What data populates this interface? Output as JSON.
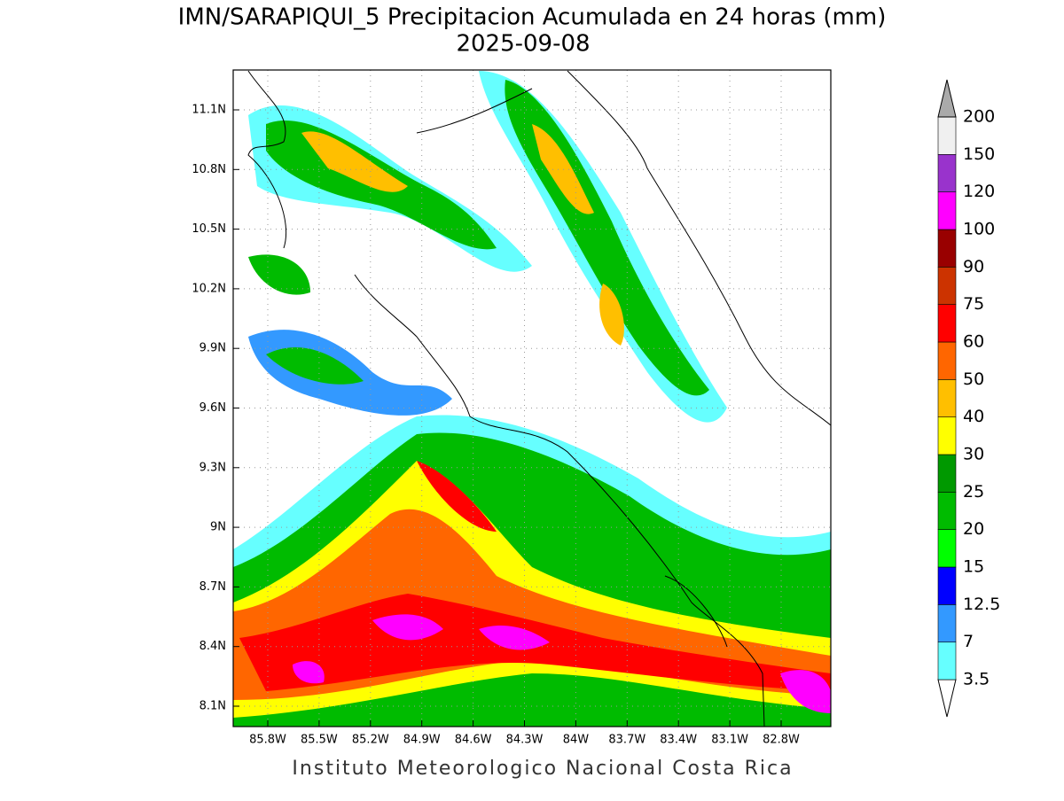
{
  "title": "IMN/SARAPIQUI_5 Precipitacion Acumulada en 24 horas (mm)",
  "subtitle": "2025-09-08",
  "map": {
    "lat_ticks": [
      "11.1N",
      "10.8N",
      "10.5N",
      "10.2N",
      "9.9N",
      "9.6N",
      "9.3N",
      "9N",
      "8.7N",
      "8.4N",
      "8.1N"
    ],
    "lon_ticks": [
      "85.8W",
      "85.5W",
      "85.2W",
      "84.9W",
      "84.6W",
      "84.3W",
      "84W",
      "83.7W",
      "83.4W",
      "83.1W",
      "82.8W"
    ]
  },
  "colorbar": {
    "levels": [
      3.5,
      7,
      12.5,
      15,
      20,
      25,
      30,
      40,
      50,
      60,
      75,
      90,
      100,
      120,
      150,
      200
    ],
    "colors": [
      "#ffffff",
      "#66ffff",
      "#3399ff",
      "#0000ff",
      "#00ff00",
      "#00bb00",
      "#009900",
      "#ffff00",
      "#ffbf00",
      "#ff6600",
      "#ff0000",
      "#cc3300",
      "#990000",
      "#ff00ff",
      "#9933cc",
      "#f0f0f0",
      "#aaaaaa"
    ]
  },
  "footer": "Instituto Meteorologico Nacional Costa Rica"
}
